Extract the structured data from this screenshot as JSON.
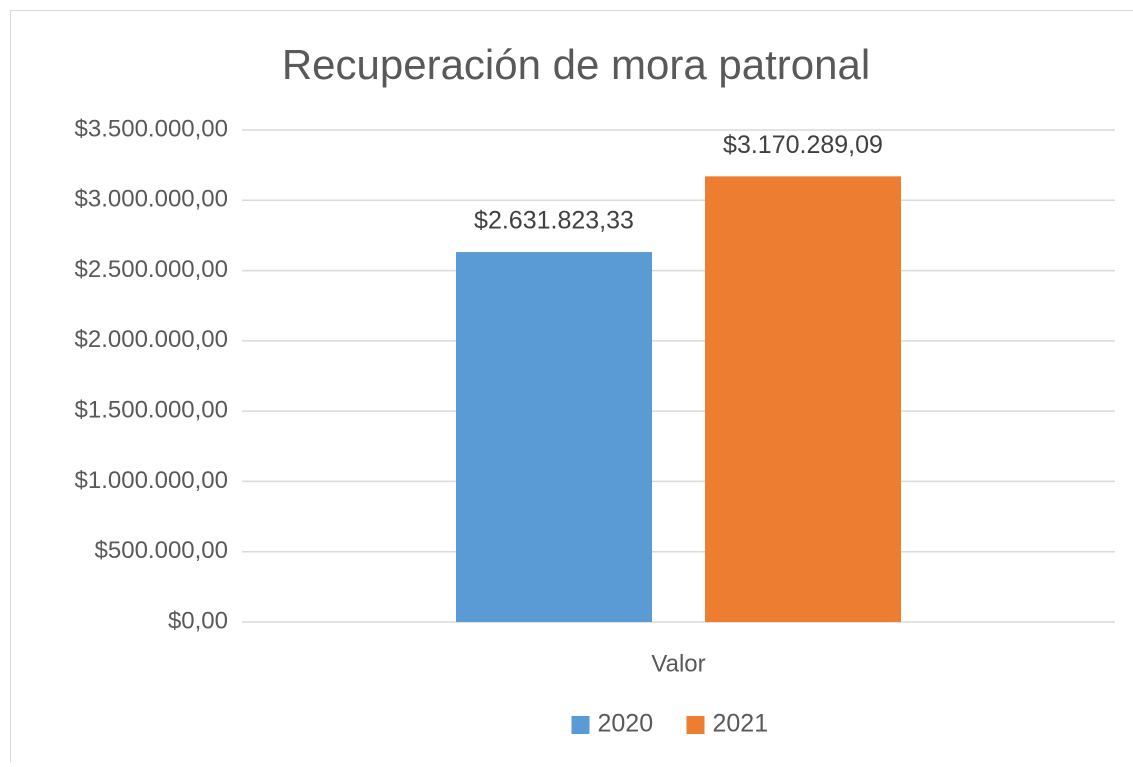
{
  "chart_data": {
    "type": "bar",
    "title": "Recuperación de mora patronal",
    "categories": [
      "Valor"
    ],
    "series": [
      {
        "name": "2020",
        "color": "#5b9bd5",
        "values": [
          2631823.33
        ],
        "value_labels": [
          "$2.631.823,33"
        ]
      },
      {
        "name": "2021",
        "color": "#ed7d31",
        "values": [
          3170289.09
        ],
        "value_labels": [
          "$3.170.289,09"
        ]
      }
    ],
    "ylim": [
      0,
      3500000
    ],
    "yticks": [
      {
        "value": 0,
        "label": "$0,00"
      },
      {
        "value": 500000,
        "label": "$500.000,00"
      },
      {
        "value": 1000000,
        "label": "$1.000.000,00"
      },
      {
        "value": 1500000,
        "label": "$1.500.000,00"
      },
      {
        "value": 2000000,
        "label": "$2.000.000,00"
      },
      {
        "value": 2500000,
        "label": "$2.500.000,00"
      },
      {
        "value": 3000000,
        "label": "$3.000.000,00"
      },
      {
        "value": 3500000,
        "label": "$3.500.000,00"
      }
    ],
    "grid": true,
    "legend": "bottom"
  }
}
